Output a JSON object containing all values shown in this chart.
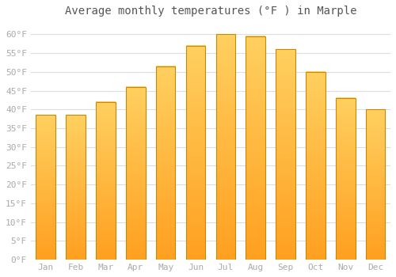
{
  "title": "Average monthly temperatures (°F ) in Marple",
  "months": [
    "Jan",
    "Feb",
    "Mar",
    "Apr",
    "May",
    "Jun",
    "Jul",
    "Aug",
    "Sep",
    "Oct",
    "Nov",
    "Dec"
  ],
  "values": [
    38.5,
    38.5,
    42,
    46,
    51.5,
    57,
    60,
    59.5,
    56,
    50,
    43,
    40
  ],
  "bar_color_top": "#FFD060",
  "bar_color_bottom": "#FFA020",
  "bar_edge_color": "#CC8800",
  "background_color": "#FFFFFF",
  "grid_color": "#DDDDDD",
  "ylim": [
    0,
    63
  ],
  "yticks": [
    0,
    5,
    10,
    15,
    20,
    25,
    30,
    35,
    40,
    45,
    50,
    55,
    60
  ],
  "ytick_labels": [
    "0°F",
    "5°F",
    "10°F",
    "15°F",
    "20°F",
    "25°F",
    "30°F",
    "35°F",
    "40°F",
    "45°F",
    "50°F",
    "55°F",
    "60°F"
  ],
  "title_fontsize": 10,
  "tick_fontsize": 8,
  "tick_color": "#AAAAAA",
  "title_color": "#555555",
  "bar_width": 0.65
}
